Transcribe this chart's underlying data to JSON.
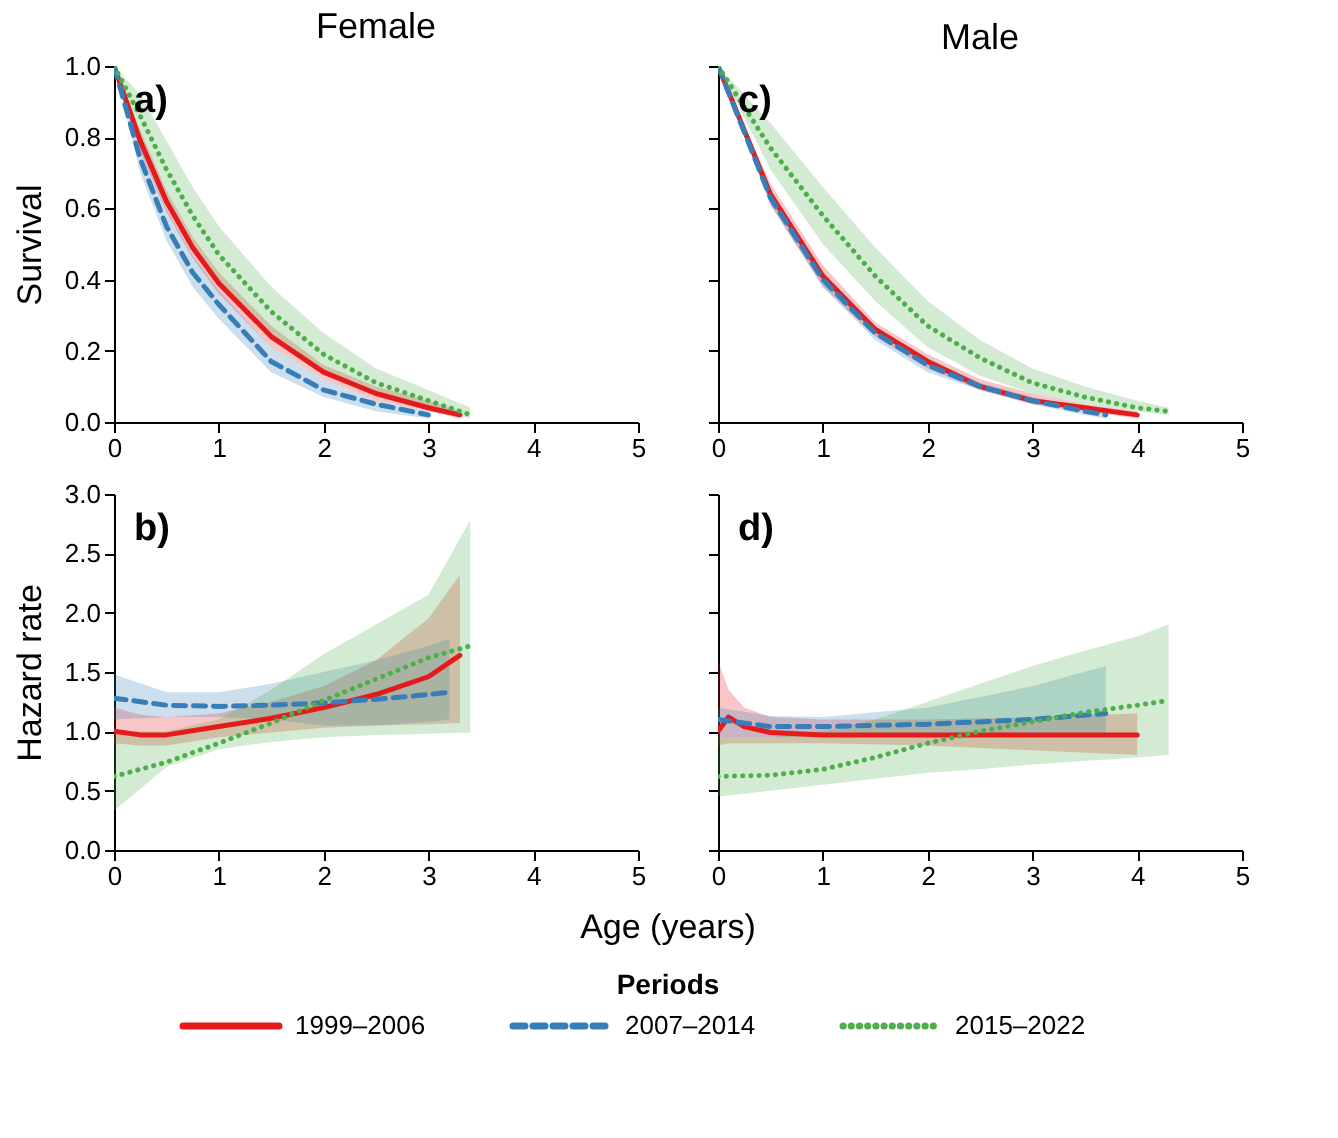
{
  "chart_data": [
    {
      "type": "line",
      "title": "Female",
      "ylabel": "Survival",
      "annotations": [
        "a)"
      ],
      "xlim": [
        0,
        5
      ],
      "ylim": [
        0,
        1
      ],
      "xticks": [
        0,
        1,
        2,
        3,
        4,
        5
      ],
      "yticks": [
        {
          "value": 0,
          "label": "0.0"
        },
        0.2,
        0.4,
        0.6,
        0.8,
        {
          "value": 1,
          "label": "1.0"
        }
      ],
      "grid": false,
      "series": [
        {
          "color": "#e41a1c",
          "line_style": "solid",
          "x": [
            0,
            0.25,
            0.5,
            0.75,
            1,
            1.5,
            2,
            2.5,
            3,
            3.3
          ],
          "values": [
            1.0,
            0.79,
            0.62,
            0.49,
            0.39,
            0.24,
            0.14,
            0.08,
            0.04,
            0.02
          ],
          "lower": [
            1.0,
            0.76,
            0.59,
            0.46,
            0.36,
            0.21,
            0.12,
            0.06,
            0.03,
            0.01
          ],
          "upper": [
            1.0,
            0.82,
            0.65,
            0.52,
            0.42,
            0.27,
            0.16,
            0.1,
            0.06,
            0.03
          ]
        },
        {
          "color": "#377eb8",
          "line_style": "dashed",
          "x": [
            0,
            0.25,
            0.5,
            0.75,
            1,
            1.5,
            2,
            2.5,
            3
          ],
          "values": [
            1.0,
            0.74,
            0.55,
            0.42,
            0.33,
            0.17,
            0.09,
            0.05,
            0.02
          ],
          "lower": [
            1.0,
            0.7,
            0.51,
            0.38,
            0.29,
            0.14,
            0.07,
            0.03,
            0.01
          ],
          "upper": [
            1.0,
            0.78,
            0.6,
            0.47,
            0.37,
            0.21,
            0.12,
            0.06,
            0.03
          ]
        },
        {
          "color": "#4daf4a",
          "line_style": "dotted",
          "x": [
            0,
            0.25,
            0.5,
            0.75,
            1,
            1.5,
            2,
            2.5,
            3,
            3.4
          ],
          "values": [
            1.0,
            0.86,
            0.71,
            0.58,
            0.47,
            0.31,
            0.19,
            0.11,
            0.06,
            0.02
          ],
          "lower": [
            1.0,
            0.8,
            0.63,
            0.5,
            0.39,
            0.24,
            0.14,
            0.08,
            0.04,
            0.01
          ],
          "upper": [
            1.0,
            0.92,
            0.79,
            0.66,
            0.55,
            0.38,
            0.25,
            0.15,
            0.09,
            0.04
          ]
        }
      ]
    },
    {
      "type": "line",
      "title": "Male",
      "annotations": [
        "c)"
      ],
      "xlim": [
        0,
        5
      ],
      "ylim": [
        0,
        1
      ],
      "xticks": [
        0,
        1,
        2,
        3,
        4,
        5
      ],
      "yticks": [
        0,
        0.2,
        0.4,
        0.6,
        0.8,
        1
      ],
      "tick_labels": "x",
      "grid": false,
      "series": [
        {
          "color": "#e41a1c",
          "line_style": "solid",
          "x": [
            0,
            0.5,
            1,
            1.5,
            2,
            2.5,
            3,
            3.5,
            4
          ],
          "values": [
            1.0,
            0.64,
            0.41,
            0.26,
            0.17,
            0.1,
            0.06,
            0.04,
            0.02
          ],
          "lower": [
            1.0,
            0.61,
            0.38,
            0.24,
            0.15,
            0.09,
            0.05,
            0.03,
            0.01
          ],
          "upper": [
            1.0,
            0.67,
            0.44,
            0.28,
            0.19,
            0.12,
            0.08,
            0.05,
            0.03
          ]
        },
        {
          "color": "#377eb8",
          "line_style": "dashed",
          "x": [
            0,
            0.5,
            1,
            1.5,
            2,
            2.5,
            3,
            3.5,
            3.7
          ],
          "values": [
            1.0,
            0.63,
            0.4,
            0.25,
            0.16,
            0.1,
            0.06,
            0.03,
            0.02
          ],
          "lower": [
            1.0,
            0.61,
            0.38,
            0.23,
            0.14,
            0.09,
            0.05,
            0.02,
            0.01
          ],
          "upper": [
            1.0,
            0.65,
            0.42,
            0.27,
            0.18,
            0.11,
            0.07,
            0.04,
            0.03
          ]
        },
        {
          "color": "#4daf4a",
          "line_style": "dotted",
          "x": [
            0,
            0.5,
            1,
            1.5,
            2,
            2.5,
            3,
            3.5,
            4,
            4.3
          ],
          "values": [
            1.0,
            0.77,
            0.58,
            0.41,
            0.27,
            0.18,
            0.11,
            0.07,
            0.04,
            0.03
          ],
          "lower": [
            1.0,
            0.71,
            0.5,
            0.34,
            0.21,
            0.13,
            0.08,
            0.05,
            0.03,
            0.02
          ],
          "upper": [
            1.0,
            0.84,
            0.66,
            0.49,
            0.34,
            0.23,
            0.15,
            0.1,
            0.06,
            0.04
          ]
        }
      ]
    },
    {
      "type": "line",
      "ylabel": "Hazard rate",
      "xlabel": "Age (years)",
      "annotations": [
        "b)"
      ],
      "xlim": [
        0,
        5
      ],
      "ylim": [
        0,
        3
      ],
      "xticks": [
        0,
        1,
        2,
        3,
        4,
        5
      ],
      "yticks": [
        {
          "value": 0,
          "label": "0.0"
        },
        0.5,
        {
          "value": 1,
          "label": "1.0"
        },
        1.5,
        {
          "value": 2,
          "label": "2.0"
        },
        2.5,
        {
          "value": 3,
          "label": "3.0"
        }
      ],
      "grid": false,
      "series": [
        {
          "color": "#e41a1c",
          "line_style": "solid",
          "x": [
            0,
            0.25,
            0.5,
            1,
            1.5,
            2,
            2.5,
            3,
            3.3
          ],
          "values": [
            1.0,
            0.97,
            0.97,
            1.04,
            1.11,
            1.2,
            1.31,
            1.46,
            1.64
          ],
          "lower": [
            0.9,
            0.88,
            0.88,
            0.95,
            0.99,
            1.03,
            1.05,
            1.06,
            1.07
          ],
          "upper": [
            1.2,
            1.14,
            1.12,
            1.15,
            1.25,
            1.38,
            1.6,
            1.95,
            2.32
          ]
        },
        {
          "color": "#377eb8",
          "line_style": "dashed",
          "x": [
            0,
            0.5,
            1,
            1.5,
            2,
            2.5,
            3,
            3.2
          ],
          "values": [
            1.28,
            1.22,
            1.21,
            1.22,
            1.24,
            1.27,
            1.31,
            1.33
          ],
          "lower": [
            1.1,
            1.12,
            1.12,
            1.1,
            1.05,
            1.05,
            1.08,
            1.1
          ],
          "upper": [
            1.48,
            1.33,
            1.33,
            1.4,
            1.5,
            1.6,
            1.72,
            1.78
          ]
        },
        {
          "color": "#4daf4a",
          "line_style": "dotted",
          "x": [
            0,
            0.5,
            1,
            1.5,
            2,
            2.5,
            3,
            3.4
          ],
          "values": [
            0.62,
            0.74,
            0.9,
            1.07,
            1.26,
            1.44,
            1.62,
            1.72
          ],
          "lower": [
            0.33,
            0.7,
            0.85,
            0.91,
            0.95,
            0.97,
            0.98,
            0.99
          ],
          "upper": [
            1.0,
            1.0,
            1.1,
            1.35,
            1.65,
            1.9,
            2.15,
            2.78
          ]
        }
      ]
    },
    {
      "type": "line",
      "annotations": [
        "d)"
      ],
      "xlim": [
        0,
        5
      ],
      "ylim": [
        0,
        3
      ],
      "xticks": [
        0,
        1,
        2,
        3,
        4,
        5
      ],
      "yticks": [
        0,
        0.5,
        1,
        1.5,
        2,
        2.5,
        3
      ],
      "tick_labels": "x",
      "grid": false,
      "legend": "bottom",
      "legend_title": "Periods",
      "series": [
        {
          "name": "1999–2006",
          "color": "#e41a1c",
          "line_style": "solid",
          "x": [
            0,
            0.1,
            0.25,
            0.5,
            1,
            2,
            3,
            4
          ],
          "values": [
            1.0,
            1.12,
            1.04,
            0.99,
            0.97,
            0.97,
            0.97,
            0.97
          ],
          "lower": [
            0.88,
            0.9,
            0.9,
            0.9,
            0.9,
            0.88,
            0.84,
            0.8
          ],
          "upper": [
            1.6,
            1.35,
            1.2,
            1.12,
            1.1,
            1.1,
            1.12,
            1.15
          ]
        },
        {
          "name": "2007–2014",
          "color": "#377eb8",
          "line_style": "dashed",
          "x": [
            0,
            0.5,
            1,
            2,
            3,
            3.7
          ],
          "values": [
            1.1,
            1.04,
            1.04,
            1.06,
            1.1,
            1.15
          ],
          "lower": [
            0.95,
            0.95,
            0.95,
            0.95,
            0.95,
            0.95
          ],
          "upper": [
            1.2,
            1.13,
            1.12,
            1.2,
            1.38,
            1.55
          ]
        },
        {
          "name": "2015–2022",
          "color": "#4daf4a",
          "line_style": "dotted",
          "x": [
            0,
            0.5,
            1,
            1.5,
            2,
            2.5,
            3,
            3.5,
            4,
            4.3
          ],
          "values": [
            0.62,
            0.63,
            0.68,
            0.78,
            0.9,
            1.0,
            1.08,
            1.16,
            1.22,
            1.26
          ],
          "lower": [
            0.45,
            0.5,
            0.55,
            0.6,
            0.65,
            0.68,
            0.72,
            0.75,
            0.78,
            0.8
          ],
          "upper": [
            0.95,
            0.95,
            1.0,
            1.1,
            1.25,
            1.4,
            1.55,
            1.68,
            1.8,
            1.9
          ]
        }
      ]
    }
  ]
}
